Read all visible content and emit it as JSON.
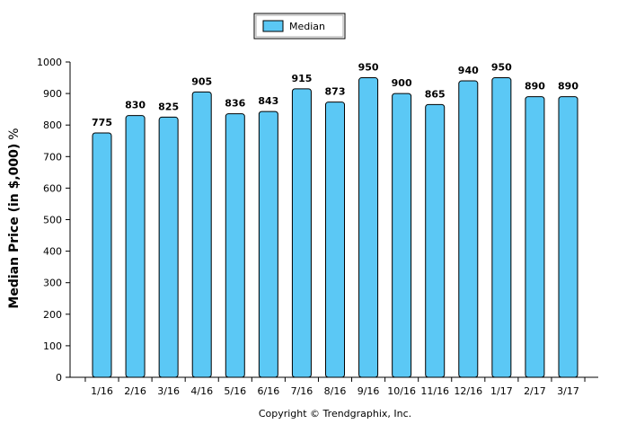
{
  "chart_data": {
    "type": "bar",
    "categories": [
      "1/16",
      "2/16",
      "3/16",
      "4/16",
      "5/16",
      "6/16",
      "7/16",
      "8/16",
      "9/16",
      "10/16",
      "11/16",
      "12/16",
      "1/17",
      "2/17",
      "3/17"
    ],
    "series": [
      {
        "name": "Median",
        "values": [
          775,
          830,
          825,
          905,
          836,
          843,
          915,
          873,
          950,
          900,
          865,
          940,
          950,
          890,
          890
        ]
      }
    ],
    "data_labels": [
      "775",
      "830",
      "825",
      "905",
      "836",
      "843",
      "915",
      "873",
      "950",
      "900",
      "865",
      "940",
      "950",
      "890",
      "890"
    ],
    "y_ticks": [
      "0",
      "100",
      "200",
      "300",
      "400",
      "500",
      "600",
      "700",
      "800",
      "900",
      "1000"
    ],
    "ylabel": "Median Price (in $,000)",
    "ylabel_unit": "%",
    "ylim": [
      0,
      1000
    ],
    "grid": false,
    "legend": {
      "position": "top-center",
      "label": "Median"
    },
    "colors": {
      "bar_fill": "#5bc8f5",
      "bar_edge": "#000000",
      "legend_fill": "#5bc8f5"
    }
  },
  "footer": {
    "copyright": "Copyright © Trendgraphix, Inc."
  }
}
